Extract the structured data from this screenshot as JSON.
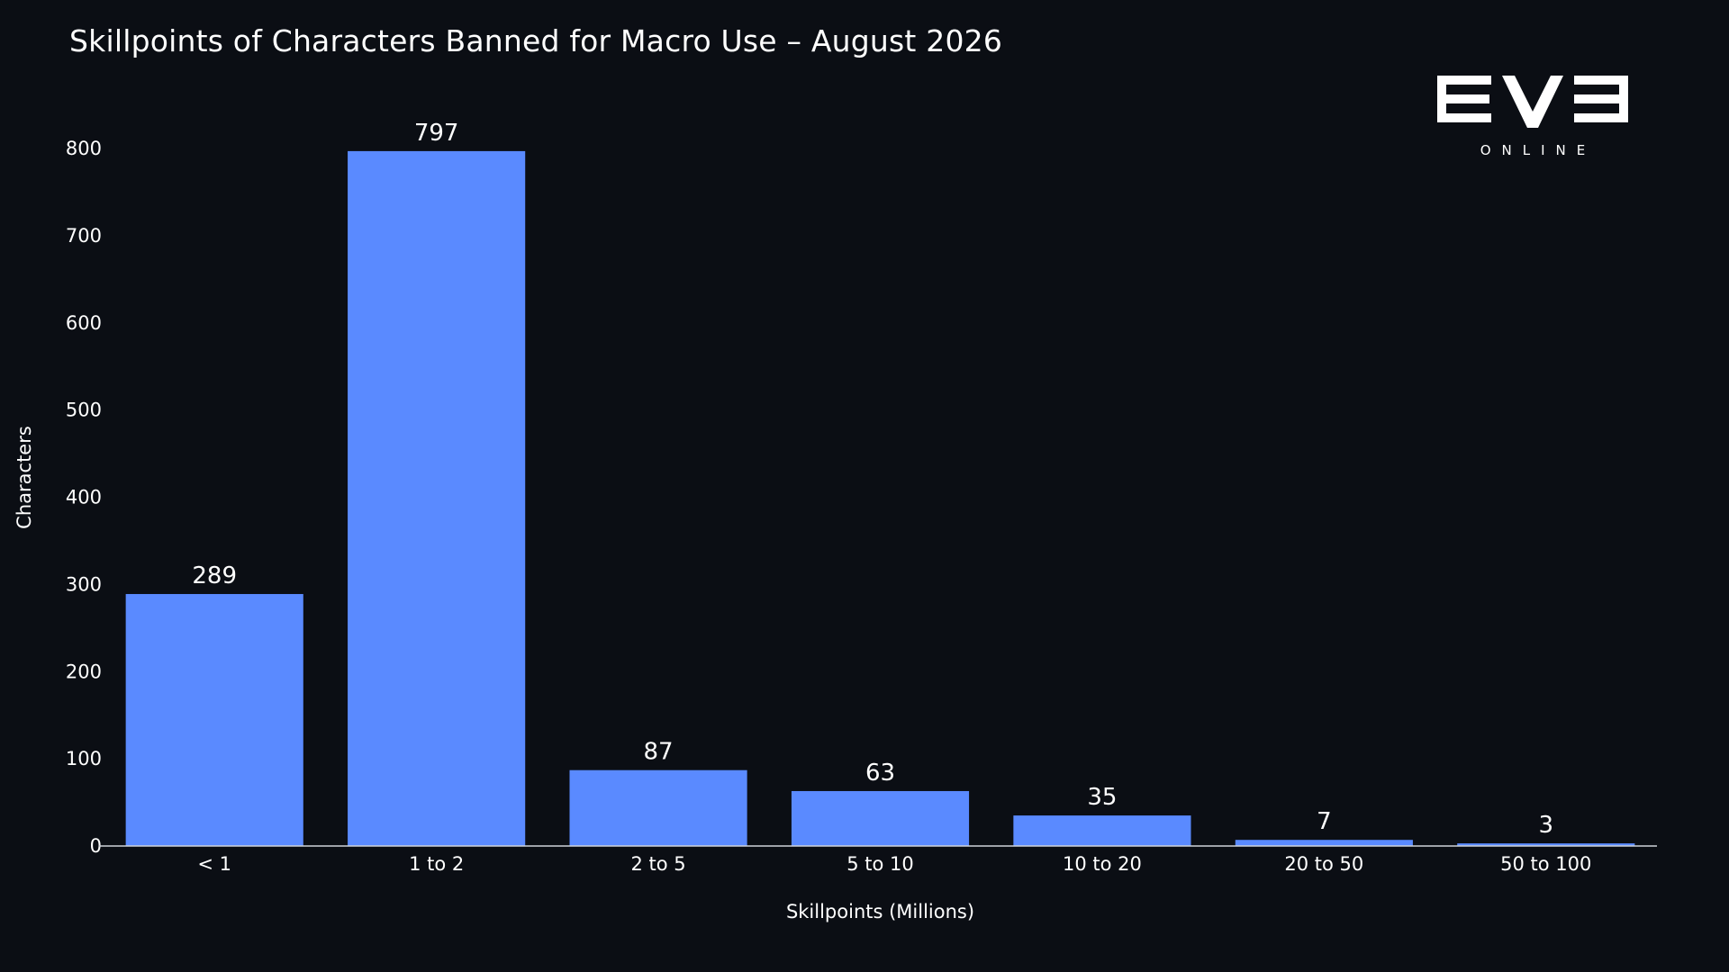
{
  "logo": {
    "wordmark": "EVE",
    "subtext": "ONLINE"
  },
  "chart_data": {
    "type": "bar",
    "title": "Skillpoints of Characters Banned for Macro Use – August 2026",
    "xlabel": "Skillpoints (Millions)",
    "ylabel": "Characters",
    "categories": [
      "< 1",
      "1 to 2",
      "2 to 5",
      "5 to 10",
      "10 to 20",
      "20 to 50",
      "50 to 100"
    ],
    "values": [
      289,
      797,
      87,
      63,
      35,
      7,
      3
    ],
    "ylim": [
      0,
      800
    ],
    "yticks": [
      0,
      100,
      200,
      300,
      400,
      500,
      600,
      700,
      800
    ],
    "grid": false,
    "legend": "none",
    "bar_color": "#5a8aff",
    "background_color": "#0b0e14"
  }
}
